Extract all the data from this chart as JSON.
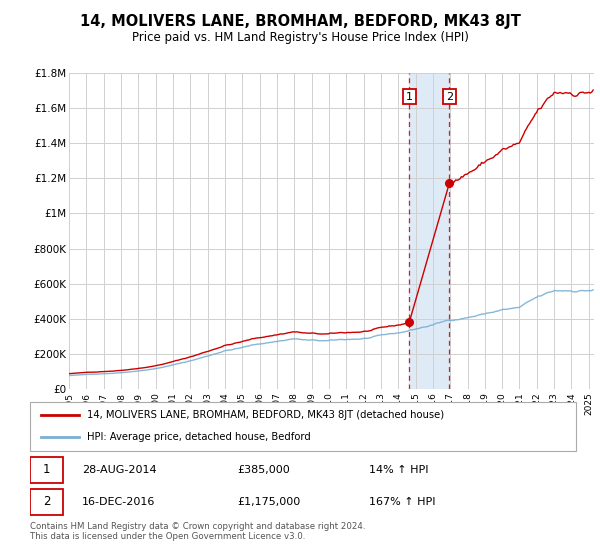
{
  "title": "14, MOLIVERS LANE, BROMHAM, BEDFORD, MK43 8JT",
  "subtitle": "Price paid vs. HM Land Registry's House Price Index (HPI)",
  "xlim": [
    1995.0,
    2025.3
  ],
  "ylim": [
    0,
    1800000
  ],
  "yticks": [
    0,
    200000,
    400000,
    600000,
    800000,
    1000000,
    1200000,
    1400000,
    1600000,
    1800000
  ],
  "ytick_labels": [
    "£0",
    "£200K",
    "£400K",
    "£600K",
    "£800K",
    "£1M",
    "£1.2M",
    "£1.4M",
    "£1.6M",
    "£1.8M"
  ],
  "xtick_years": [
    1995,
    1996,
    1997,
    1998,
    1999,
    2000,
    2001,
    2002,
    2003,
    2004,
    2005,
    2006,
    2007,
    2008,
    2009,
    2010,
    2011,
    2012,
    2013,
    2014,
    2015,
    2016,
    2017,
    2018,
    2019,
    2020,
    2021,
    2022,
    2023,
    2024,
    2025
  ],
  "sale1_x": 2014.65,
  "sale1_price": 385000,
  "sale1_label": "1",
  "sale1_date": "28-AUG-2014",
  "sale1_price_str": "£385,000",
  "sale1_hpi_pct": "14% ↑ HPI",
  "sale2_x": 2016.96,
  "sale2_price": 1175000,
  "sale2_label": "2",
  "sale2_date": "16-DEC-2016",
  "sale2_price_str": "£1,175,000",
  "sale2_hpi_pct": "167% ↑ HPI",
  "property_color": "#cc0000",
  "hpi_color": "#7ab0d4",
  "shaded_color": "#deeaf5",
  "legend_property": "14, MOLIVERS LANE, BROMHAM, BEDFORD, MK43 8JT (detached house)",
  "legend_hpi": "HPI: Average price, detached house, Bedford",
  "footer": "Contains HM Land Registry data © Crown copyright and database right 2024.\nThis data is licensed under the Open Government Licence v3.0.",
  "grid_color": "#d0d0d0",
  "label_box_color": "#cc0000"
}
